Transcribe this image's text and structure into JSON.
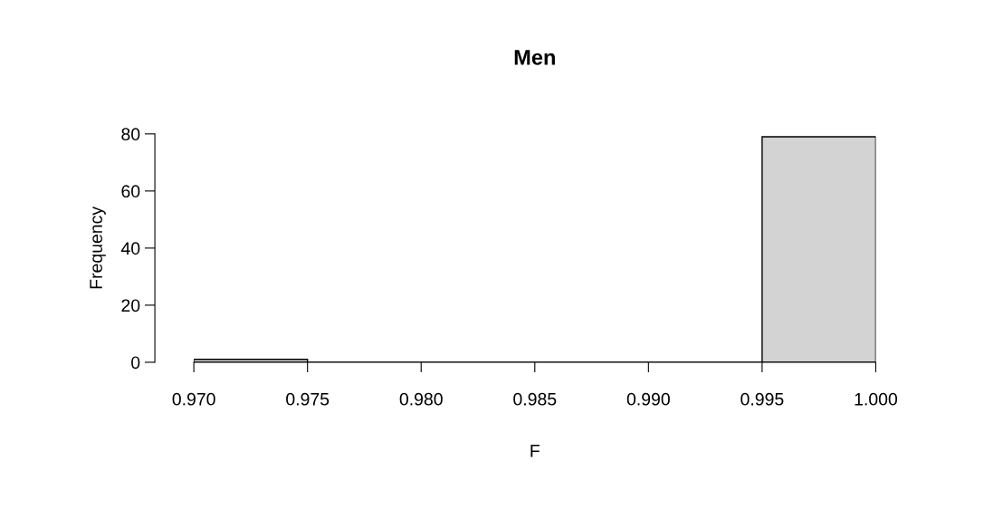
{
  "chart_data": {
    "type": "histogram",
    "title": "Men",
    "xlabel": "F",
    "ylabel": "Frequency",
    "bins": [
      0.97,
      0.975,
      0.98,
      0.985,
      0.99,
      0.995,
      1.0
    ],
    "values": [
      1,
      0,
      0,
      0,
      0,
      79
    ],
    "color": "#d3d3d3",
    "xlim": [
      0.97,
      1.0
    ],
    "xticks": [
      {
        "value": 0.97,
        "label": "0.970"
      },
      {
        "value": 0.975,
        "label": "0.975"
      },
      {
        "value": 0.98,
        "label": "0.980"
      },
      {
        "value": 0.985,
        "label": "0.985"
      },
      {
        "value": 0.99,
        "label": "0.990"
      },
      {
        "value": 0.995,
        "label": "0.995"
      },
      {
        "value": 1.0,
        "label": "1.000"
      }
    ],
    "ylim": [
      0,
      80
    ],
    "yticks": [
      0,
      20,
      40,
      60,
      80
    ],
    "grid": false,
    "legend": false
  }
}
